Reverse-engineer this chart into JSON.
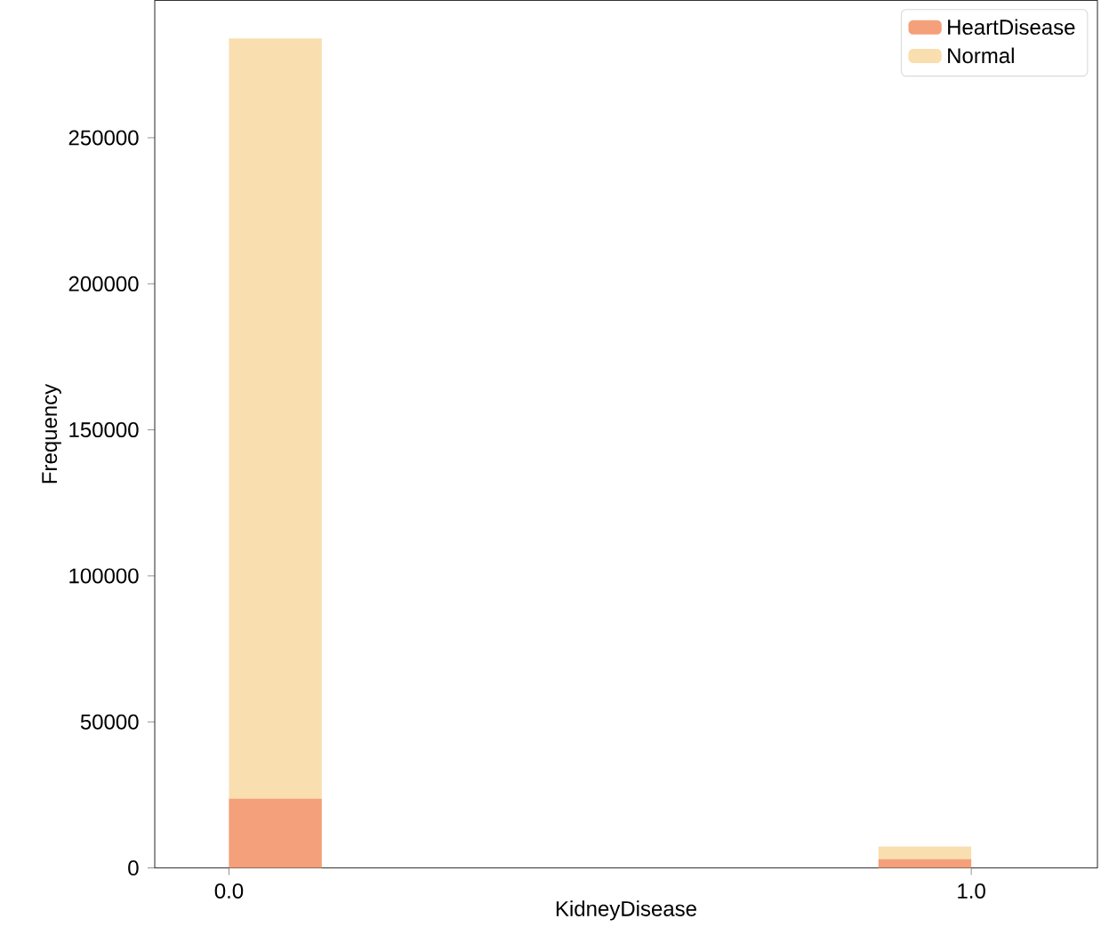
{
  "chart_data": {
    "type": "histogram",
    "xlabel": "KidneyDisease",
    "ylabel": "Frequency",
    "bins": [
      0,
      0.125,
      0.25,
      0.375,
      0.5,
      0.625,
      0.75,
      0.875,
      1.0
    ],
    "series": [
      {
        "name": "Normal",
        "color": "#f9deb0",
        "values": [
          284000,
          0,
          0,
          0,
          0,
          0,
          0,
          7300
        ]
      },
      {
        "name": "HeartDisease",
        "color": "#f4a07a",
        "values": [
          23700,
          0,
          0,
          0,
          0,
          0,
          0,
          3000
        ]
      }
    ],
    "xlim": [
      -0.1,
      1.17
    ],
    "ylim": [
      0,
      297000
    ],
    "xticks": [
      {
        "value": 0,
        "label": "0.0"
      },
      {
        "value": 1.0,
        "label": "1.0"
      }
    ],
    "yticks": [
      0,
      50000,
      100000,
      150000,
      200000,
      250000
    ],
    "legend": "top right",
    "grid": false
  }
}
